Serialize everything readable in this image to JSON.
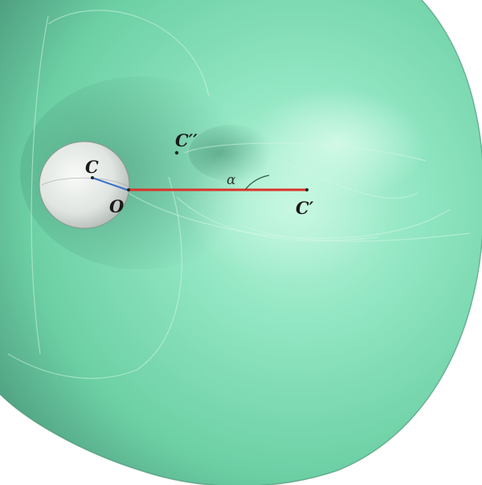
{
  "colors": {
    "body_main": "#7fe0b6",
    "body_light": "#b6f5d8",
    "body_dark": "#4a9c7c",
    "small_sphere": "#e4e8e4",
    "segment_red": "#d9332a",
    "segment_blue": "#3a6fc9"
  },
  "labels": {
    "C": "C",
    "O": "O",
    "C_prime": "C′",
    "C_double_prime": "C′′",
    "alpha": "α"
  }
}
